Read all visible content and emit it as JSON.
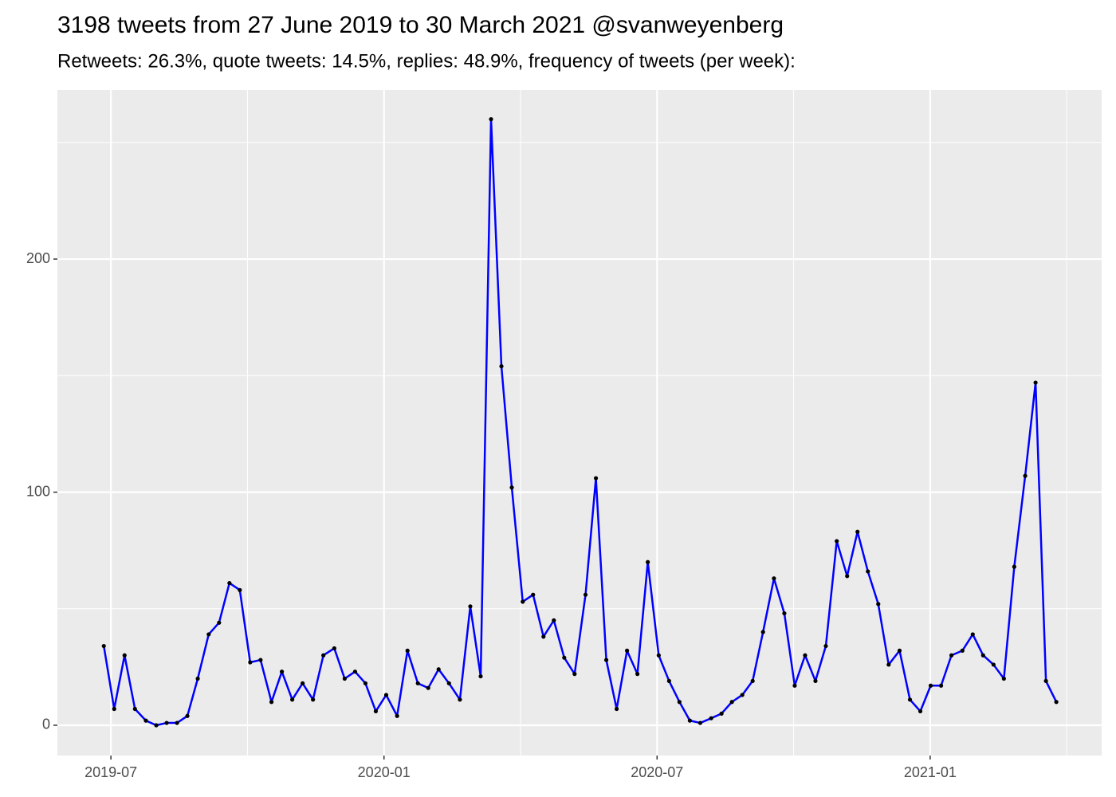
{
  "chart_data": {
    "type": "line",
    "title": "3198 tweets from 27 June 2019 to 30 March 2021 @svanweyenberg",
    "subtitle": "Retweets: 26.3%, quote tweets: 14.5%, replies: 48.9%, frequency of tweets (per week):",
    "x": [
      2019.487,
      2019.506,
      2019.525,
      2019.544,
      2019.564,
      2019.583,
      2019.602,
      2019.621,
      2019.64,
      2019.659,
      2019.679,
      2019.698,
      2019.717,
      2019.736,
      2019.755,
      2019.774,
      2019.794,
      2019.813,
      2019.832,
      2019.851,
      2019.87,
      2019.889,
      2019.909,
      2019.928,
      2019.947,
      2019.966,
      2019.985,
      2020.004,
      2020.024,
      2020.043,
      2020.062,
      2020.081,
      2020.1,
      2020.119,
      2020.139,
      2020.158,
      2020.177,
      2020.196,
      2020.215,
      2020.234,
      2020.254,
      2020.273,
      2020.292,
      2020.311,
      2020.33,
      2020.349,
      2020.369,
      2020.388,
      2020.407,
      2020.426,
      2020.445,
      2020.464,
      2020.483,
      2020.503,
      2020.522,
      2020.541,
      2020.56,
      2020.579,
      2020.599,
      2020.618,
      2020.637,
      2020.656,
      2020.675,
      2020.694,
      2020.714,
      2020.733,
      2020.752,
      2020.771,
      2020.79,
      2020.809,
      2020.829,
      2020.848,
      2020.867,
      2020.886,
      2020.905,
      2020.924,
      2020.944,
      2020.963,
      2020.982,
      2021.001,
      2021.02,
      2021.039,
      2021.059,
      2021.078,
      2021.097,
      2021.116,
      2021.135,
      2021.154,
      2021.174,
      2021.193,
      2021.212,
      2021.231
    ],
    "values": [
      34,
      7,
      30,
      7,
      2,
      0,
      1,
      1,
      4,
      20,
      39,
      44,
      61,
      58,
      27,
      28,
      10,
      23,
      11,
      18,
      11,
      30,
      33,
      20,
      23,
      18,
      6,
      13,
      4,
      32,
      18,
      16,
      24,
      18,
      11,
      51,
      21,
      260,
      154,
      102,
      53,
      56,
      38,
      45,
      29,
      22,
      56,
      106,
      28,
      7,
      32,
      22,
      70,
      30,
      19,
      10,
      2,
      1,
      3,
      5,
      10,
      13,
      19,
      40,
      63,
      48,
      17,
      30,
      19,
      34,
      79,
      64,
      83,
      66,
      52,
      26,
      32,
      11,
      6,
      17,
      17,
      30,
      32,
      39,
      30,
      26,
      20,
      68,
      107,
      147,
      19,
      10
    ],
    "color": "#0000ff",
    "point_color": "#000000",
    "xlim": [
      2019.402,
      2021.314
    ],
    "xticks": [
      {
        "value": 2019.5,
        "label": "2019-07"
      },
      {
        "value": 2020.0,
        "label": "2020-01"
      },
      {
        "value": 2020.5,
        "label": "2020-07"
      },
      {
        "value": 2021.0,
        "label": "2021-01"
      }
    ],
    "ylim": [
      -13,
      272.5
    ],
    "yticks": [
      0,
      100,
      200
    ],
    "grid": true
  }
}
